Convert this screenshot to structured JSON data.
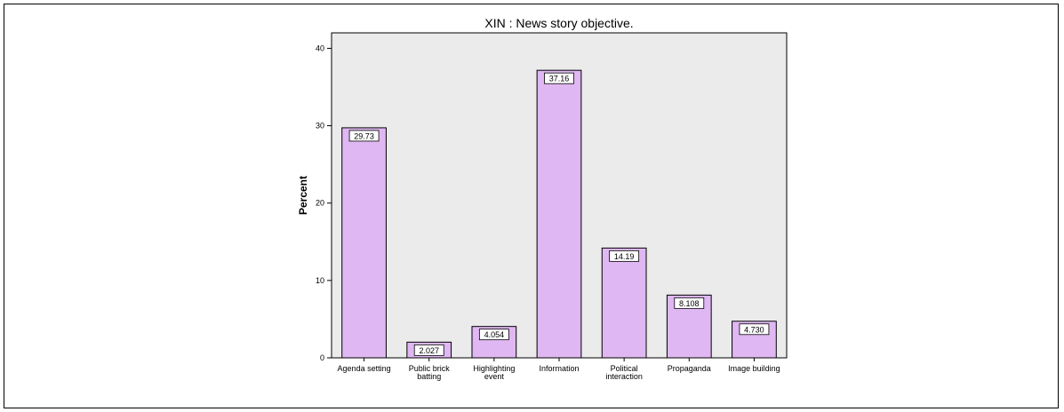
{
  "chart_data": {
    "type": "bar",
    "title": "XIN : News story objective.",
    "xlabel": "",
    "ylabel": "Percent",
    "categories": [
      [
        "Agenda setting"
      ],
      [
        "Public brick",
        "batting"
      ],
      [
        "Highlighting",
        "event"
      ],
      [
        "Information"
      ],
      [
        "Political",
        "interaction"
      ],
      [
        "Propaganda"
      ],
      [
        "Image building"
      ]
    ],
    "values": [
      29.73,
      2.027,
      4.054,
      37.16,
      14.19,
      8.108,
      4.73
    ],
    "value_labels": [
      "29.73",
      "2.027",
      "4.054",
      "37.16",
      "14.19",
      "8.108",
      "4.730"
    ],
    "ylim": [
      0,
      42
    ],
    "yticks": [
      0,
      10,
      20,
      30,
      40
    ],
    "grid": false,
    "colors": {
      "bar_fill": "#dfb7f2",
      "bar_stroke": "#000000",
      "plot_bg": "#ebebeb",
      "label_box": "#ffffff"
    }
  }
}
